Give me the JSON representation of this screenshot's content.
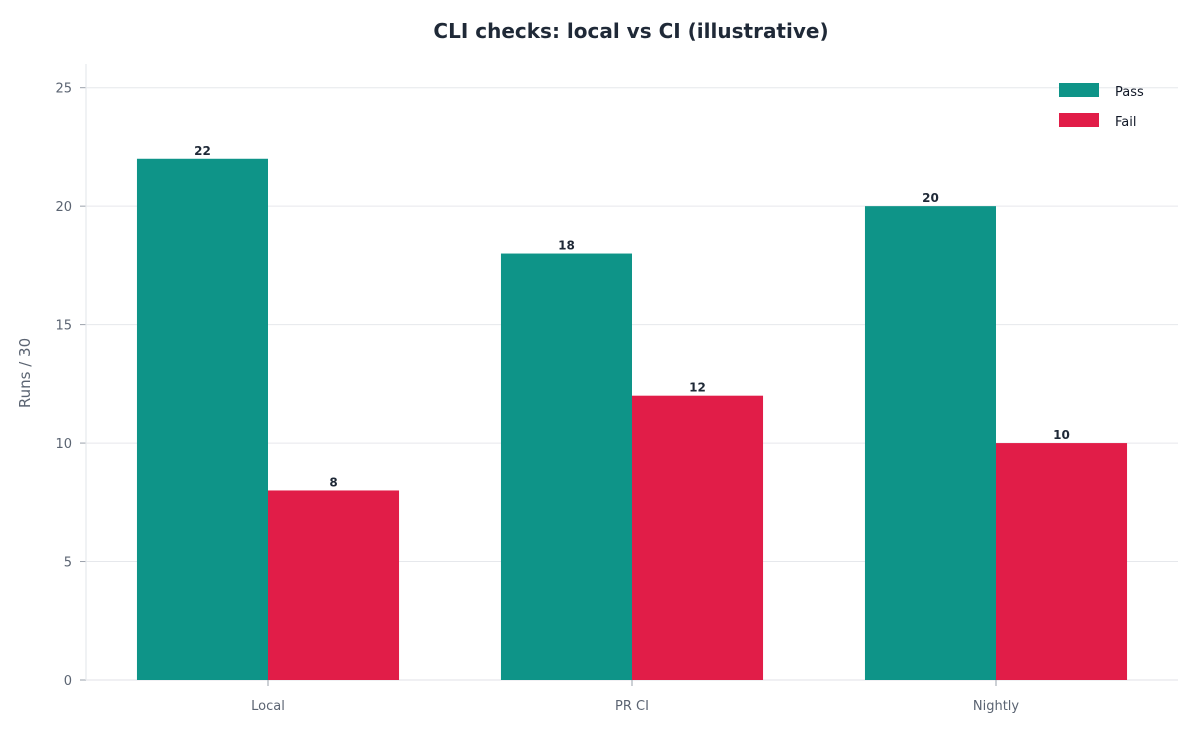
{
  "chart_data": {
    "type": "bar",
    "title": "CLI checks: local vs CI (illustrative)",
    "xlabel": "",
    "ylabel": "Runs / 30",
    "categories": [
      "Local",
      "PR CI",
      "Nightly"
    ],
    "series": [
      {
        "name": "Pass",
        "values": [
          22,
          18,
          20
        ],
        "color": "#0e9488"
      },
      {
        "name": "Fail",
        "values": [
          8,
          12,
          10
        ],
        "color": "#e11d48"
      }
    ],
    "ylim": [
      0,
      26
    ],
    "yticks": [
      "0",
      "5",
      "10",
      "15",
      "20",
      "25"
    ],
    "grid": "y",
    "legend_position": "top-right",
    "data_labels": true
  }
}
